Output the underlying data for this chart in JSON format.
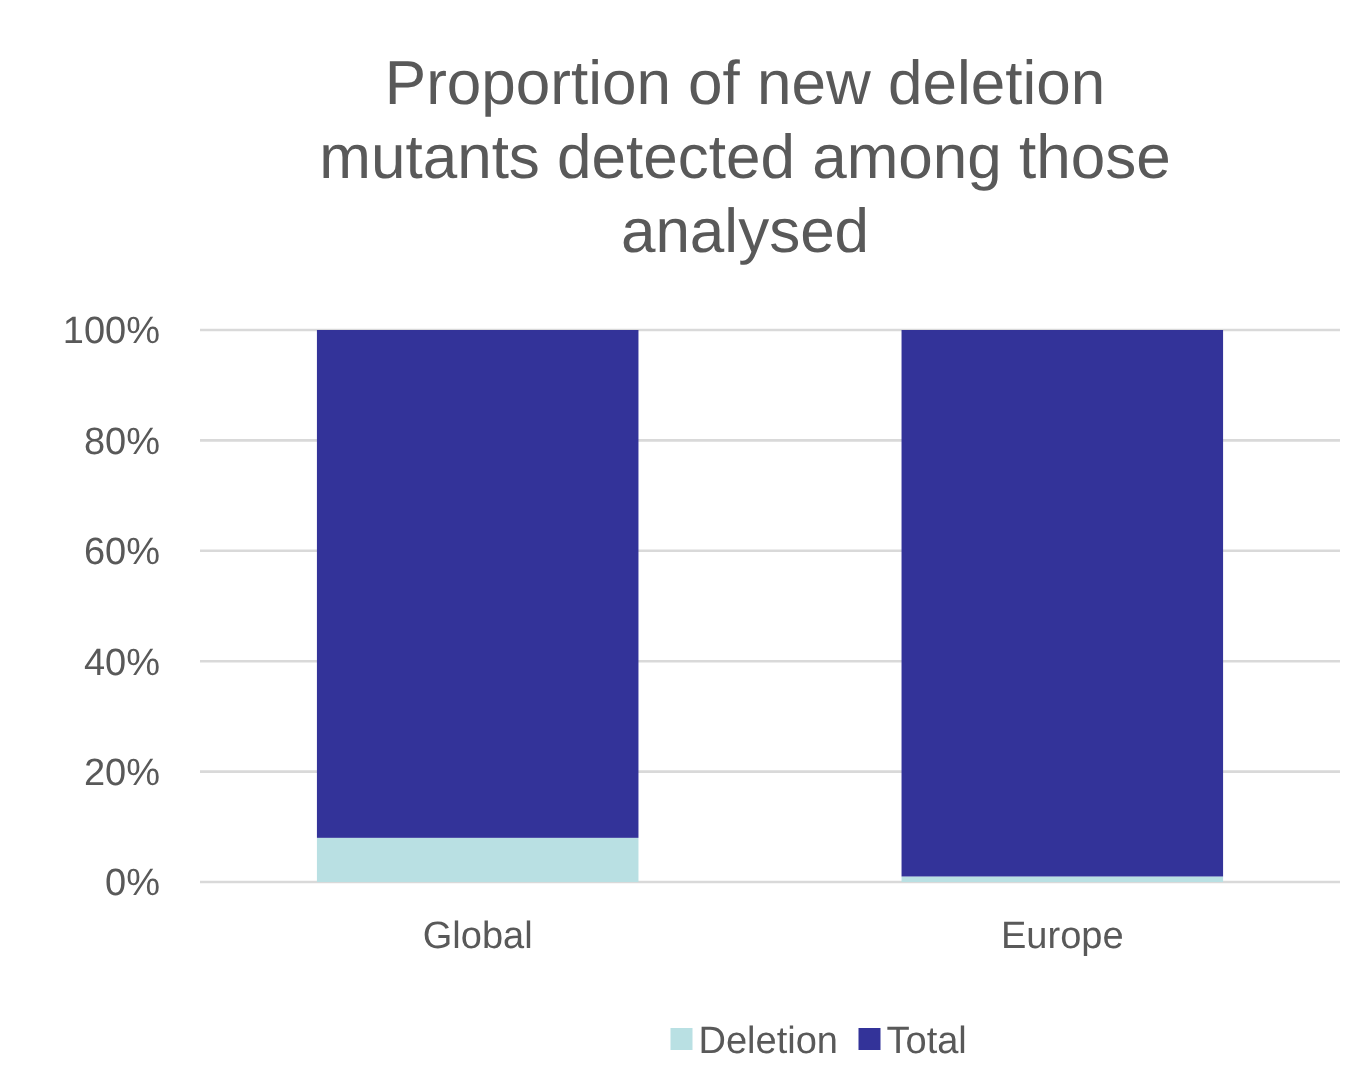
{
  "chart_data": {
    "type": "bar",
    "title": "Proportion of new deletion mutants detected among those analysed",
    "categories": [
      "Global",
      "Europe"
    ],
    "stacked": true,
    "series": [
      {
        "name": "Deletion",
        "color": "#b9e0e3",
        "values": [
          8,
          1
        ]
      },
      {
        "name": "Total",
        "color": "#333399",
        "values": [
          92,
          99
        ]
      }
    ],
    "ylim": [
      0,
      100
    ],
    "yticks": [
      {
        "value": 0,
        "label": "0%"
      },
      {
        "value": 20,
        "label": "20%"
      },
      {
        "value": 40,
        "label": "40%"
      },
      {
        "value": 60,
        "label": "60%"
      },
      {
        "value": 80,
        "label": "80%"
      },
      {
        "value": 100,
        "label": "100%"
      }
    ],
    "grid": "y",
    "legend": "bottom"
  }
}
